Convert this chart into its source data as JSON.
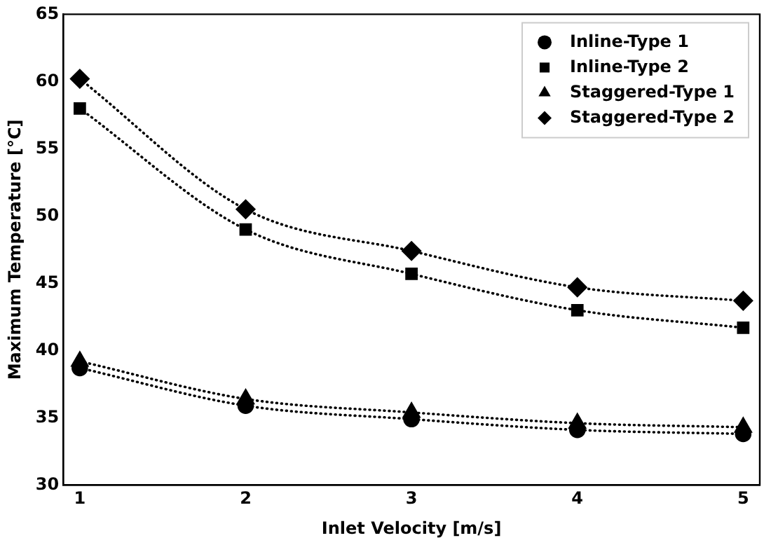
{
  "chart_data": {
    "type": "line",
    "xlabel": "Inlet Velocity [m/s]",
    "ylabel": "Maximum Temperature [°C]",
    "x": [
      1,
      2,
      3,
      4,
      5
    ],
    "xlim": [
      0.9,
      5.1
    ],
    "xticks": [
      1,
      2,
      3,
      4,
      5
    ],
    "ylim": [
      30,
      65
    ],
    "yticks": [
      30,
      35,
      40,
      45,
      50,
      55,
      60,
      65
    ],
    "grid": false,
    "legend": "top right",
    "line_style": "dotted",
    "series": [
      {
        "name": "Inline-Type 1",
        "color": "#000000",
        "marker": "circle",
        "values": [
          38.7,
          35.9,
          34.9,
          34.1,
          33.8
        ]
      },
      {
        "name": "Inline-Type 2",
        "color": "#000000",
        "marker": "square",
        "values": [
          58.0,
          49.0,
          45.7,
          43.0,
          41.7
        ]
      },
      {
        "name": "Staggered-Type 1",
        "color": "#000000",
        "marker": "triangle",
        "values": [
          39.2,
          36.4,
          35.4,
          34.6,
          34.3
        ]
      },
      {
        "name": "Staggered-Type 2",
        "color": "#000000",
        "marker": "diamond",
        "values": [
          60.2,
          50.5,
          47.4,
          44.7,
          43.7
        ]
      }
    ]
  }
}
